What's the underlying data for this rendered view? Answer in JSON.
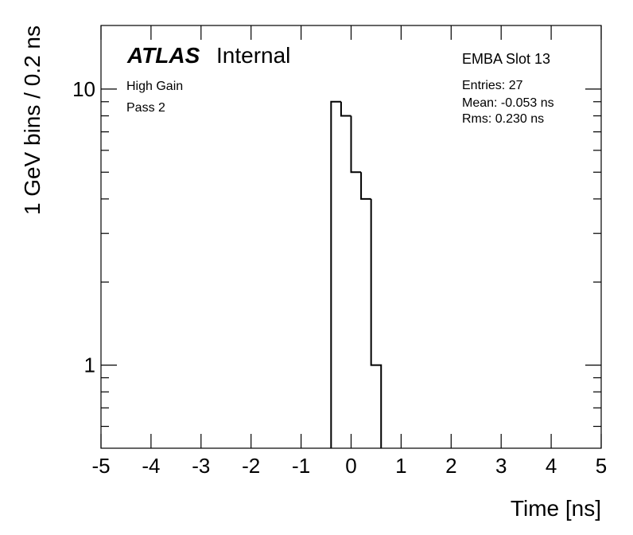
{
  "chart_data": {
    "type": "histogram",
    "atlas_label": "ATLAS",
    "status_label": "Internal",
    "annotations": [
      "High Gain",
      "Pass 2"
    ],
    "stats_title": "EMBA Slot 13",
    "stats": [
      "Entries: 27",
      "Mean: -0.053 ns",
      "Rms: 0.230 ns"
    ],
    "x_label": "Time [ns]",
    "y_label": "1 GeV bins / 0.2 ns",
    "bins": [
      -0.4,
      -0.2,
      0,
      0.2,
      0.4,
      0.6
    ],
    "values": [
      9,
      8,
      5,
      4,
      1
    ],
    "color": "#000000",
    "xlim": [
      -5,
      5
    ],
    "xticks": [
      -5,
      -4,
      -3,
      -2,
      -1,
      0,
      1,
      2,
      3,
      4,
      5
    ],
    "ylim": [
      0.5,
      17
    ],
    "yticks": [
      1,
      10
    ],
    "yminor_ticks": [
      0.6,
      0.7,
      0.8,
      0.9,
      2,
      3,
      4,
      5,
      6,
      7,
      8,
      9
    ],
    "log_y": true
  }
}
